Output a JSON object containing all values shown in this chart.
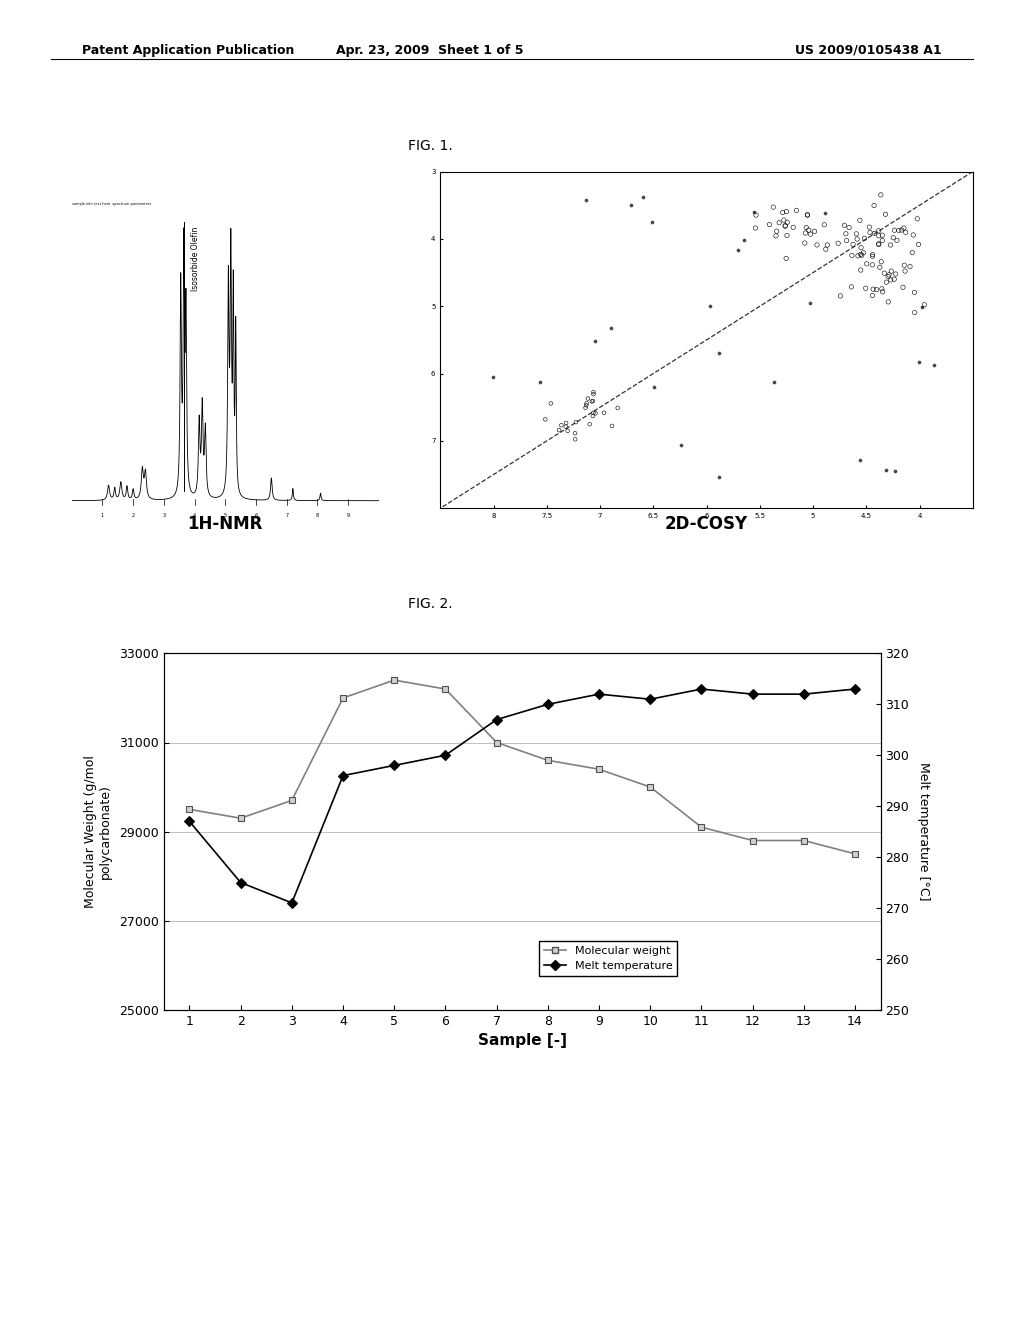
{
  "header_left": "Patent Application Publication",
  "header_center": "Apr. 23, 2009  Sheet 1 of 5",
  "header_right": "US 2009/0105438 A1",
  "fig1_label": "FIG. 1.",
  "fig2_label": "FIG. 2.",
  "nmr_label": "1H-NMR",
  "cosy_label": "2D-COSY",
  "fig2_xlabel": "Sample [-]",
  "fig2_ylabel_left": "Molecular Weight (g/mol\npolycarbonate)",
  "fig2_ylabel_right": "Melt temperature [°C]",
  "mw_ylim": [
    25000,
    33000
  ],
  "temp_ylim": [
    250,
    320
  ],
  "mw_yticks": [
    25000,
    27000,
    29000,
    31000,
    33000
  ],
  "temp_yticks": [
    250,
    260,
    270,
    280,
    290,
    300,
    310,
    320
  ],
  "samples": [
    1,
    2,
    3,
    4,
    5,
    6,
    7,
    8,
    9,
    10,
    11,
    12,
    13,
    14
  ],
  "mol_weight": [
    29500,
    29300,
    29700,
    32000,
    32400,
    32200,
    31000,
    30600,
    30400,
    30000,
    29100,
    28800,
    28800,
    28500
  ],
  "melt_temp": [
    287,
    275,
    271,
    296,
    298,
    300,
    307,
    310,
    312,
    311,
    313,
    312,
    312,
    313
  ],
  "mw_color": "#808080",
  "temp_color": "#000000",
  "legend_mw": "Molecular weight",
  "legend_temp": "Melt temperature",
  "background_color": "#ffffff",
  "grid_color": "#c0c0c0",
  "cosy_xticks": [
    4.0,
    4.5,
    5.0,
    5.5,
    6.0,
    6.5,
    7.0,
    7.5,
    8.0
  ],
  "cosy_xticklabels": [
    "4",
    "4.5",
    "5",
    "5.5",
    "6",
    "6.5",
    "7",
    "7.5",
    "8"
  ],
  "cosy_yticks": [
    3.5,
    4.5,
    5.5,
    6.5,
    7.5
  ],
  "cosy_yticklabels": [
    "3",
    "4",
    "5",
    "6",
    "7"
  ]
}
